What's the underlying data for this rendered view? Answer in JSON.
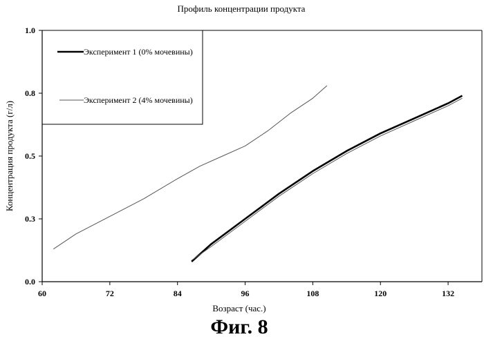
{
  "chart_data": {
    "type": "line",
    "title": "Профиль концентрации продукта",
    "xlabel": "Возраст (час.)",
    "ylabel": "Концентрация продукта (г/л)",
    "xlim": [
      60,
      138
    ],
    "ylim": [
      0,
      1.0
    ],
    "x_ticks": [
      60,
      72,
      84,
      96,
      108,
      120,
      132
    ],
    "y_ticks": [
      {
        "value": 0.0,
        "label": "0.0"
      },
      {
        "value": 0.25,
        "label": "0.3"
      },
      {
        "value": 0.5,
        "label": "0.5"
      },
      {
        "value": 0.75,
        "label": "0.8"
      },
      {
        "value": 1.0,
        "label": "1.0"
      }
    ],
    "grid": false,
    "legend_position": "top-left",
    "series": [
      {
        "name": "Эксперимент 1 (0% мочевины)",
        "color": "#000000",
        "style": "thick",
        "points": [
          [
            86.5,
            0.08
          ],
          [
            90,
            0.15
          ],
          [
            96,
            0.25
          ],
          [
            102,
            0.35
          ],
          [
            108,
            0.44
          ],
          [
            114,
            0.52
          ],
          [
            120,
            0.59
          ],
          [
            126,
            0.65
          ],
          [
            132,
            0.71
          ],
          [
            134.5,
            0.74
          ]
        ]
      },
      {
        "name": "Эксперимент 2 (4% мочевины)",
        "color": "#555555",
        "style": "thin",
        "points": [
          [
            62,
            0.13
          ],
          [
            66,
            0.19
          ],
          [
            72,
            0.26
          ],
          [
            78,
            0.33
          ],
          [
            84,
            0.41
          ],
          [
            88,
            0.46
          ],
          [
            92,
            0.5
          ],
          [
            96,
            0.54
          ],
          [
            100,
            0.6
          ],
          [
            104,
            0.67
          ],
          [
            108,
            0.73
          ],
          [
            110.5,
            0.78
          ]
        ]
      },
      {
        "name": "",
        "color": "#555555",
        "style": "thin",
        "points": [
          [
            86.5,
            0.085
          ],
          [
            90,
            0.14
          ],
          [
            96,
            0.24
          ],
          [
            102,
            0.34
          ],
          [
            108,
            0.43
          ],
          [
            114,
            0.51
          ],
          [
            120,
            0.58
          ],
          [
            126,
            0.64
          ],
          [
            132,
            0.7
          ],
          [
            134.5,
            0.73
          ]
        ]
      }
    ]
  },
  "caption": "Фиг. 8"
}
